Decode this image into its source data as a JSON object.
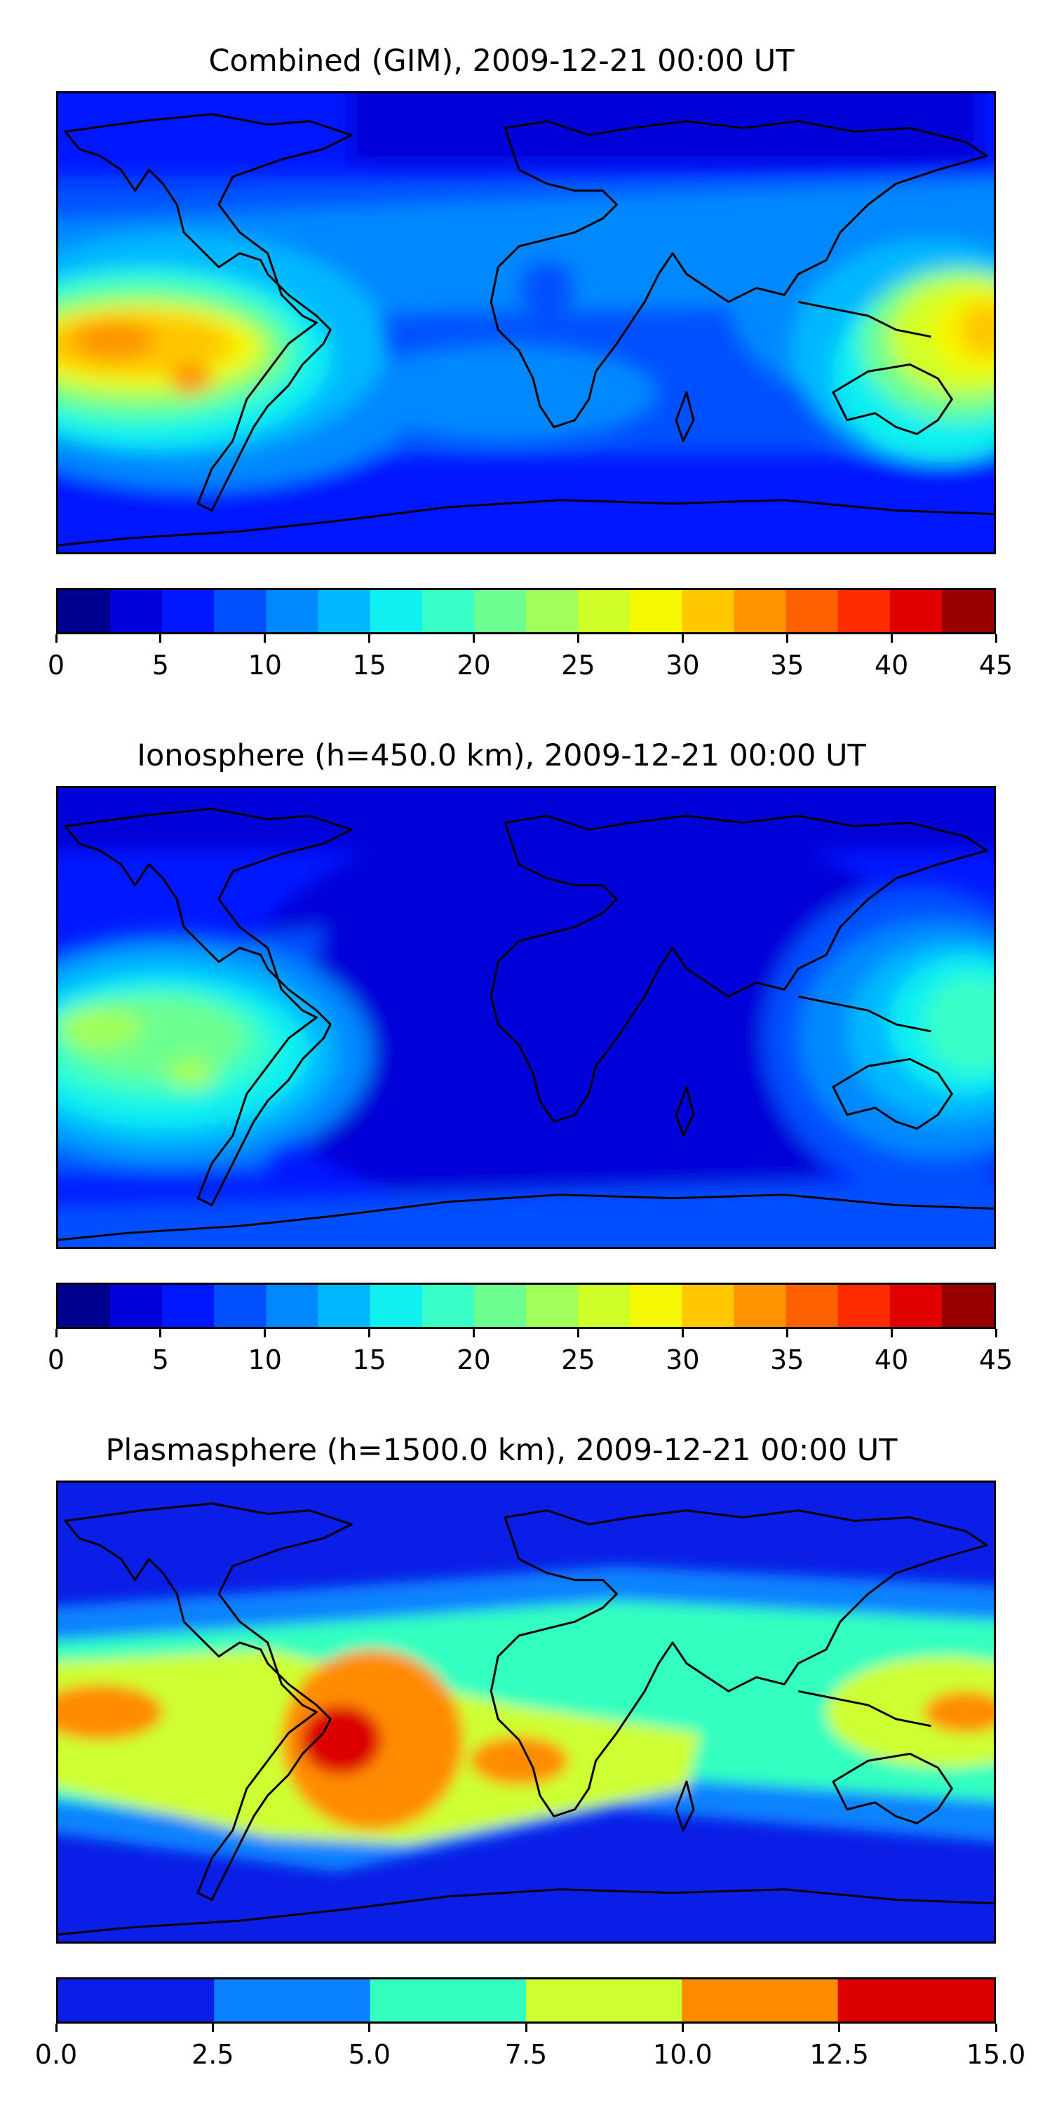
{
  "panels": [
    {
      "title": "Combined (GIM), 2009-12-21 00:00 UT",
      "colorbar": {
        "ticks": [
          "0",
          "5",
          "10",
          "15",
          "20",
          "25",
          "30",
          "35",
          "40",
          "45"
        ],
        "levels": [
          0,
          2.5,
          5,
          7.5,
          10,
          12.5,
          15,
          17.5,
          20,
          22.5,
          25,
          27.5,
          30,
          32.5,
          35,
          37.5,
          40,
          42.5,
          45
        ],
        "colors": [
          "#00008f",
          "#0000d8",
          "#0018ff",
          "#0050ff",
          "#0088ff",
          "#00b8ff",
          "#10f0f0",
          "#38ffc8",
          "#6cff90",
          "#a0ff58",
          "#d0ff28",
          "#f4f800",
          "#ffc800",
          "#ff9400",
          "#ff6000",
          "#ff2c00",
          "#e00000",
          "#980000"
        ]
      }
    },
    {
      "title": "Ionosphere  (h=450.0 km), 2009-12-21 00:00 UT",
      "colorbar": {
        "ticks": [
          "0",
          "5",
          "10",
          "15",
          "20",
          "25",
          "30",
          "35",
          "40",
          "45"
        ],
        "levels": [
          0,
          2.5,
          5,
          7.5,
          10,
          12.5,
          15,
          17.5,
          20,
          22.5,
          25,
          27.5,
          30,
          32.5,
          35,
          37.5,
          40,
          42.5,
          45
        ],
        "colors": [
          "#00008f",
          "#0000d8",
          "#0018ff",
          "#0050ff",
          "#0088ff",
          "#00b8ff",
          "#10f0f0",
          "#38ffc8",
          "#6cff90",
          "#a0ff58",
          "#d0ff28",
          "#f4f800",
          "#ffc800",
          "#ff9400",
          "#ff6000",
          "#ff2c00",
          "#e00000",
          "#980000"
        ]
      }
    },
    {
      "title": "Plasmasphere (h=1500.0 km), 2009-12-21 00:00 UT",
      "colorbar": {
        "ticks": [
          "0.0",
          "2.5",
          "5.0",
          "7.5",
          "10.0",
          "12.5",
          "15.0"
        ],
        "levels": [
          0,
          2.5,
          5,
          7.5,
          10,
          12.5,
          15
        ],
        "colors": [
          "#0a1ee6",
          "#0a82ff",
          "#32ffc0",
          "#cdff32",
          "#ff8c00",
          "#dc0000"
        ]
      }
    }
  ]
}
